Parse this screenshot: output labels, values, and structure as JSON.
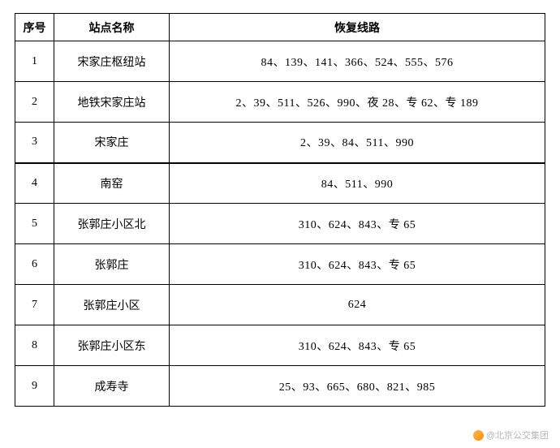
{
  "table": {
    "headers": {
      "index": "序号",
      "station": "站点名称",
      "routes": "恢复线路"
    },
    "rows": [
      {
        "index": "1",
        "station": "宋家庄枢纽站",
        "routes": "84、139、141、366、524、555、576"
      },
      {
        "index": "2",
        "station": "地铁宋家庄站",
        "routes": "2、39、511、526、990、夜 28、专 62、专 189"
      },
      {
        "index": "3",
        "station": "宋家庄",
        "routes": "2、39、84、511、990"
      },
      {
        "index": "4",
        "station": "南窑",
        "routes": "84、511、990"
      },
      {
        "index": "5",
        "station": "张郭庄小区北",
        "routes": "310、624、843、专 65"
      },
      {
        "index": "6",
        "station": "张郭庄",
        "routes": "310、624、843、专 65"
      },
      {
        "index": "7",
        "station": "张郭庄小区",
        "routes": "624"
      },
      {
        "index": "8",
        "station": "张郭庄小区东",
        "routes": "310、624、843、专 65"
      },
      {
        "index": "9",
        "station": "成寿寺",
        "routes": "25、93、665、680、821、985"
      }
    ],
    "thick_border_after_row": 3,
    "header_font_size": 14,
    "cell_font_size": 14,
    "text_color": "#000000",
    "border_color": "#000000",
    "background_color": "#ffffff"
  },
  "watermark": {
    "text": "@北京公交集团",
    "color": "#b8b8b8"
  }
}
